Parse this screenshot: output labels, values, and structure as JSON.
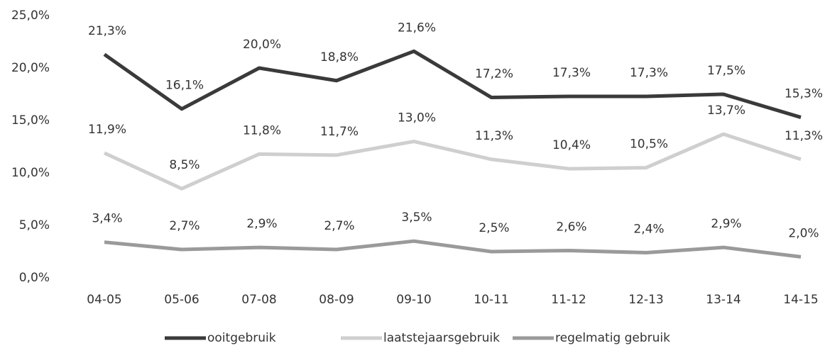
{
  "chart_data": {
    "type": "line",
    "categories": [
      "04-05",
      "05-06",
      "07-08",
      "08-09",
      "09-10",
      "10-11",
      "11-12",
      "12-13",
      "13-14",
      "14-15"
    ],
    "series": [
      {
        "name": "ooitgebruik",
        "color": "#3a3a3a",
        "values": [
          21.3,
          16.1,
          20.0,
          18.8,
          21.6,
          17.2,
          17.3,
          17.3,
          17.5,
          15.3
        ],
        "value_labels": [
          "21,3%",
          "16,1%",
          "20,0%",
          "18,8%",
          "21,6%",
          "17,2%",
          "17,3%",
          "17,3%",
          "17,5%",
          "15,3%"
        ]
      },
      {
        "name": "laatstejaarsgebruik",
        "color": "#cfcfcf",
        "values": [
          11.9,
          8.5,
          11.8,
          11.7,
          13.0,
          11.3,
          10.4,
          10.5,
          13.7,
          11.3
        ],
        "value_labels": [
          "11,9%",
          "8,5%",
          "11,8%",
          "11,7%",
          "13,0%",
          "11,3%",
          "10,4%",
          "10,5%",
          "13,7%",
          "11,3%"
        ]
      },
      {
        "name": "regelmatig gebruik",
        "color": "#9a9a9a",
        "values": [
          3.4,
          2.7,
          2.9,
          2.7,
          3.5,
          2.5,
          2.6,
          2.4,
          2.9,
          2.0
        ],
        "value_labels": [
          "3,4%",
          "2,7%",
          "2,9%",
          "2,7%",
          "3,5%",
          "2,5%",
          "2,6%",
          "2,4%",
          "2,9%",
          "2,0%"
        ]
      }
    ],
    "ylim": [
      0,
      25
    ],
    "yticks": [
      {
        "value": 0,
        "label": "0,0%"
      },
      {
        "value": 5,
        "label": "5,0%"
      },
      {
        "value": 10,
        "label": "10,0%"
      },
      {
        "value": 15,
        "label": "15,0%"
      },
      {
        "value": 20,
        "label": "20,0%"
      },
      {
        "value": 25,
        "label": "25,0%"
      }
    ],
    "grid": false
  }
}
